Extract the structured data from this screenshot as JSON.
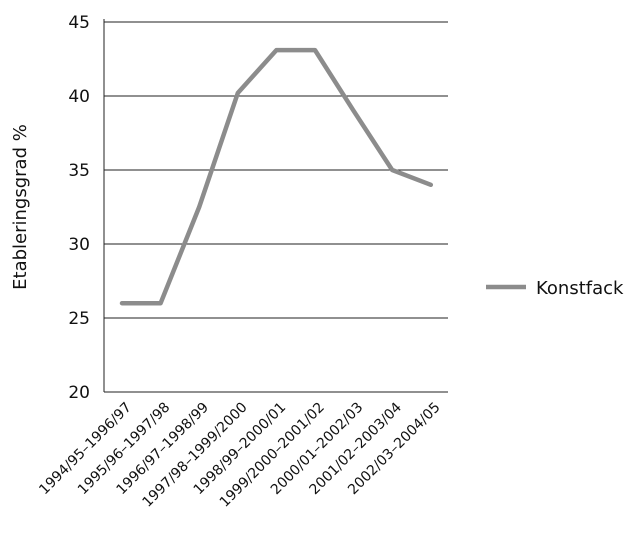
{
  "chart_data": {
    "type": "line",
    "title": "",
    "xlabel": "",
    "ylabel": "Etableringsgrad %",
    "ylim": [
      20,
      45
    ],
    "yticks": [
      20,
      25,
      30,
      35,
      40,
      45
    ],
    "grid": true,
    "legend_position": "right",
    "categories": [
      "1994/95–1996/97",
      "1995/96–1997/98",
      "1996/97–1998/99",
      "1997/98–1999/2000",
      "1998/99–2000/01",
      "1999/2000–2001/02",
      "2000/01–2002/03",
      "2001/02–2003/04",
      "2002/03–2004/05"
    ],
    "series": [
      {
        "name": "Konstfack",
        "color": "#8c8c8c",
        "values": [
          26,
          26,
          32.5,
          40.2,
          43.1,
          43.1,
          39,
          35,
          34
        ]
      }
    ]
  }
}
